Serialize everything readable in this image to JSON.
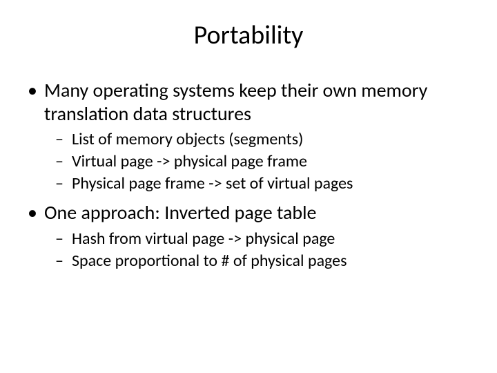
{
  "title": "Portability",
  "bullets": [
    {
      "text": "Many operating systems keep their own memory translation data structures",
      "sub": [
        "List of memory objects (segments)",
        "Virtual page -> physical page frame",
        "Physical page frame -> set of virtual pages"
      ]
    },
    {
      "text": "One approach: Inverted page table",
      "sub": [
        "Hash from virtual page -> physical page",
        "Space proportional to # of physical pages"
      ]
    }
  ],
  "colors": {
    "background": "#ffffff",
    "text": "#000000"
  },
  "fonts": {
    "title_size": 38,
    "level1_size": 28,
    "level2_size": 24,
    "family": "Calibri"
  }
}
